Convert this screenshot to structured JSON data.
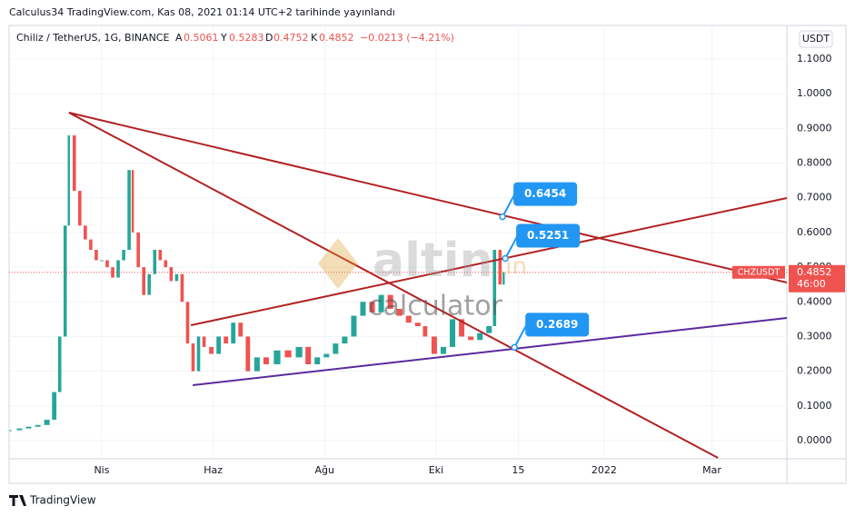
{
  "header": {
    "published": "Calculus34 TradingView.com, Kas 08, 2021 01:14 UTC+2 tarihinde yayınlandı",
    "symbol": "Chiliz / TetherUS, 1G, BINANCE",
    "o_label": "A",
    "o": "0.5061",
    "h_label": "Y",
    "h": "0.5283",
    "l_label": "D",
    "l": "0.4752",
    "c_label": "K",
    "c": "0.4852",
    "change": "−0.0213 (−4.21%)",
    "currency": "USDT"
  },
  "watermark": {
    "brand": "altin",
    "tld": ".in",
    "sub": "calculator"
  },
  "footer": "TradingView",
  "chart_data": {
    "type": "candlestick",
    "name": "CHZUSDT",
    "x": [
      40,
      45,
      50,
      55,
      60,
      64,
      67,
      70,
      72,
      75,
      78,
      81,
      84,
      87,
      90,
      93,
      96,
      99,
      102,
      105,
      107,
      110,
      113,
      116,
      119,
      122,
      125,
      128,
      131,
      134,
      137,
      140,
      143,
      146,
      150,
      154,
      158,
      162,
      166,
      170,
      175,
      180,
      186,
      192,
      198,
      203,
      208,
      213,
      218,
      223,
      228,
      233,
      238,
      243,
      248,
      253,
      258,
      263,
      267,
      272,
      277,
      282,
      287,
      292,
      297,
      302,
      305,
      308,
      310
    ],
    "values": [
      0.03,
      0.035,
      0.04,
      0.045,
      0.06,
      0.14,
      0.3,
      0.62,
      0.88,
      0.72,
      0.62,
      0.58,
      0.55,
      0.52,
      0.52,
      0.5,
      0.47,
      0.52,
      0.55,
      0.78,
      0.6,
      0.5,
      0.42,
      0.48,
      0.55,
      0.52,
      0.5,
      0.46,
      0.48,
      0.4,
      0.28,
      0.2,
      0.3,
      0.27,
      0.25,
      0.3,
      0.28,
      0.34,
      0.3,
      0.2,
      0.24,
      0.22,
      0.26,
      0.24,
      0.27,
      0.22,
      0.24,
      0.25,
      0.28,
      0.3,
      0.36,
      0.4,
      0.37,
      0.42,
      0.38,
      0.36,
      0.34,
      0.33,
      0.3,
      0.25,
      0.27,
      0.35,
      0.3,
      0.29,
      0.31,
      0.33,
      0.55,
      0.45,
      0.4852
    ],
    "up_color": "#26a69a",
    "down_color": "#ef5350",
    "last_price": 0.4852,
    "countdown": "46:00",
    "xlim": [
      39.3,
      465
    ],
    "ylim": [
      -0.0524,
      1.197
    ],
    "xticks": [
      {
        "value": 90,
        "label": "Nis"
      },
      {
        "value": 151,
        "label": "Haz"
      },
      {
        "value": 212,
        "label": "Ağu"
      },
      {
        "value": 273,
        "label": "Eki"
      },
      {
        "value": 318,
        "label": "15"
      },
      {
        "value": 365,
        "label": "2022"
      },
      {
        "value": 424,
        "label": "Mar"
      }
    ],
    "yticks": [
      {
        "value": 0,
        "label": "0.0000"
      },
      {
        "value": 0.1,
        "label": "0.1000"
      },
      {
        "value": 0.2,
        "label": "0.2000"
      },
      {
        "value": 0.3,
        "label": "0.3000"
      },
      {
        "value": 0.4,
        "label": "0.4000"
      },
      {
        "value": 0.5,
        "label": "0.5000"
      },
      {
        "value": 0.6,
        "label": "0.6000"
      },
      {
        "value": 0.7,
        "label": "0.7000"
      },
      {
        "value": 0.8,
        "label": "0.8000"
      },
      {
        "value": 0.9,
        "label": "0.9000"
      },
      {
        "value": 1,
        "label": "1.0000"
      },
      {
        "value": 1.1,
        "label": "1.1000"
      }
    ],
    "trendlines": [
      {
        "color": "#b22222",
        "x": [
          72.1,
          465
        ],
        "y": [
          0.9455,
          0.4557
        ]
      },
      {
        "color": "#b22222",
        "x": [
          72.1,
          427.3
        ],
        "y": [
          0.9455,
          -0.0498
        ]
      },
      {
        "color": "#b22222",
        "x": [
          138.8,
          465
        ],
        "y": [
          0.3326,
          0.6993
        ]
      },
      {
        "color": "#5b2a9e",
        "x": [
          139.8,
          465
        ],
        "y": [
          0.1598,
          0.3536
        ]
      }
    ],
    "annotations": [
      {
        "x": 309.4,
        "y": 0.6454
      },
      {
        "x": 310.9,
        "y": 0.5251
      },
      {
        "x": 315.9,
        "y": 0.2689
      }
    ],
    "annotation_color": "#2196f3"
  }
}
